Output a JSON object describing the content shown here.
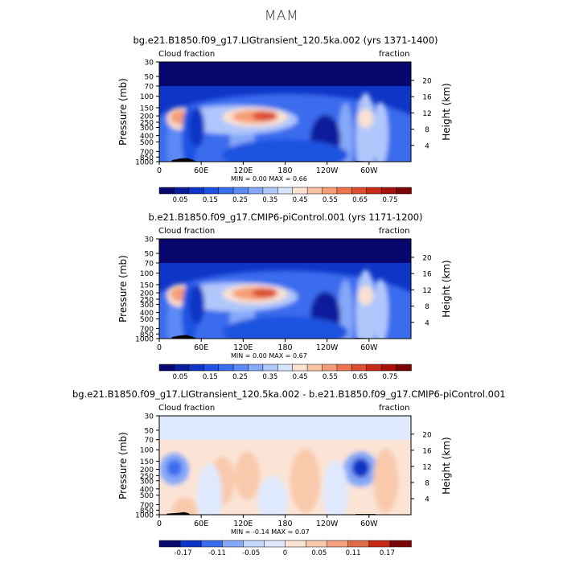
{
  "figure": {
    "title": "MAM"
  },
  "panels": [
    {
      "id": "p1",
      "title": "bg.e21.B1850.f09_g17.LIGtransient_120.5ka.002 (yrs 1371-1400)",
      "left_label": "Cloud fraction",
      "right_label": "fraction",
      "ylabel": "Pressure (mb)",
      "y2label": "Height (km)",
      "minmax": "MIN =      0.00   MAX =      0.66"
    },
    {
      "id": "p2",
      "title": "b.e21.B1850.f09_g17.CMIP6-piControl.001 (yrs 1171-1200)",
      "left_label": "Cloud fraction",
      "right_label": "fraction",
      "ylabel": "Pressure (mb)",
      "y2label": "Height (km)",
      "minmax": "MIN =      0.00   MAX =      0.67"
    },
    {
      "id": "p3",
      "title": "bg.e21.B1850.f09_g17.LIGtransient_120.5ka.002 - b.e21.B1850.f09_g17.CMIP6-piControl.001",
      "left_label": "Cloud fraction",
      "right_label": "fraction",
      "ylabel": "Pressure (mb)",
      "y2label": "Height (km)",
      "minmax": "MIN =     -0.14   MAX =      0.07"
    }
  ],
  "chart_data": [
    {
      "type": "heatmap",
      "title": "bg.e21.B1850.f09_g17.LIGtransient_120.5ka.002 (yrs 1371-1400)",
      "ylabel": "Pressure (mb)",
      "y2label": "Height (km)",
      "x_ticks": [
        "0",
        "60E",
        "120E",
        "180",
        "120W",
        "60W"
      ],
      "y_ticks": [
        "30",
        "50",
        "70",
        "100",
        "150",
        "200",
        "250",
        "300",
        "400",
        "500",
        "700",
        "850",
        "1000"
      ],
      "y2_ticks": [
        "20",
        "16",
        "12",
        "8",
        "4"
      ],
      "colorbar_labels": [
        "0.05",
        "0.15",
        "0.25",
        "0.35",
        "0.45",
        "0.55",
        "0.65",
        "0.75"
      ],
      "min": 0.0,
      "max": 0.66,
      "colors": [
        "#08076e",
        "#0a1d9c",
        "#0e35c5",
        "#1f52e0",
        "#3a6cee",
        "#5c89f4",
        "#85a8f8",
        "#b0c7fb",
        "#d8e4fc",
        "#fbe1d1",
        "#f9c2a2",
        "#f49d76",
        "#ea7450",
        "#dc4e30",
        "#c72a16",
        "#a8100a",
        "#7a0505"
      ],
      "features": [
        {
          "name": "ice-cloud max near 200 mb, 130-150E",
          "value": 0.66
        },
        {
          "name": "upper max near 200 mb, 15E",
          "value": 0.6
        },
        {
          "name": "upper max near 200 mb, 75W",
          "value": 0.5
        }
      ]
    },
    {
      "type": "heatmap",
      "title": "b.e21.B1850.f09_g17.CMIP6-piControl.001 (yrs 1171-1200)",
      "ylabel": "Pressure (mb)",
      "y2label": "Height (km)",
      "x_ticks": [
        "0",
        "60E",
        "120E",
        "180",
        "120W",
        "60W"
      ],
      "y_ticks": [
        "30",
        "50",
        "70",
        "100",
        "150",
        "200",
        "250",
        "300",
        "400",
        "500",
        "700",
        "850",
        "1000"
      ],
      "y2_ticks": [
        "20",
        "16",
        "12",
        "8",
        "4"
      ],
      "colorbar_labels": [
        "0.05",
        "0.15",
        "0.25",
        "0.35",
        "0.45",
        "0.55",
        "0.65",
        "0.75"
      ],
      "min": 0.0,
      "max": 0.67,
      "colors": [
        "#08076e",
        "#0a1d9c",
        "#0e35c5",
        "#1f52e0",
        "#3a6cee",
        "#5c89f4",
        "#85a8f8",
        "#b0c7fb",
        "#d8e4fc",
        "#fbe1d1",
        "#f9c2a2",
        "#f49d76",
        "#ea7450",
        "#dc4e30",
        "#c72a16",
        "#a8100a",
        "#7a0505"
      ],
      "features": [
        {
          "name": "ice-cloud max near 200 mb, 130-150E",
          "value": 0.67
        },
        {
          "name": "upper max near 200 mb, 15E",
          "value": 0.6
        },
        {
          "name": "upper max near 200 mb, 75W",
          "value": 0.55
        }
      ]
    },
    {
      "type": "heatmap",
      "title": "bg.e21.B1850.f09_g17.LIGtransient_120.5ka.002 - b.e21.B1850.f09_g17.CMIP6-piControl.001",
      "ylabel": "Pressure (mb)",
      "y2label": "Height (km)",
      "x_ticks": [
        "0",
        "60E",
        "120E",
        "180",
        "120W",
        "60W"
      ],
      "y_ticks": [
        "30",
        "50",
        "70",
        "100",
        "150",
        "200",
        "250",
        "300",
        "400",
        "500",
        "700",
        "850",
        "1000"
      ],
      "y2_ticks": [
        "20",
        "16",
        "12",
        "8",
        "4"
      ],
      "colorbar_labels": [
        "-0.17",
        "-0.11",
        "-0.05",
        "0",
        "0.05",
        "0.11",
        "0.17"
      ],
      "min": -0.14,
      "max": 0.07,
      "colors": [
        "#08076e",
        "#0e35c5",
        "#3a6cee",
        "#85a8f8",
        "#c3d6fb",
        "#dfe9fd",
        "#fbe4d5",
        "#f9c9ac",
        "#f2a07d",
        "#e06b48",
        "#c72a16",
        "#7a0505"
      ],
      "features": [
        {
          "name": "negative anomaly near 200 mb, 15E",
          "value": -0.14
        },
        {
          "name": "negative anomaly near 200 mb, 75W",
          "value": -0.12
        },
        {
          "name": "positive anomaly near 250 mb, 60-120E",
          "value": 0.05
        }
      ]
    }
  ]
}
